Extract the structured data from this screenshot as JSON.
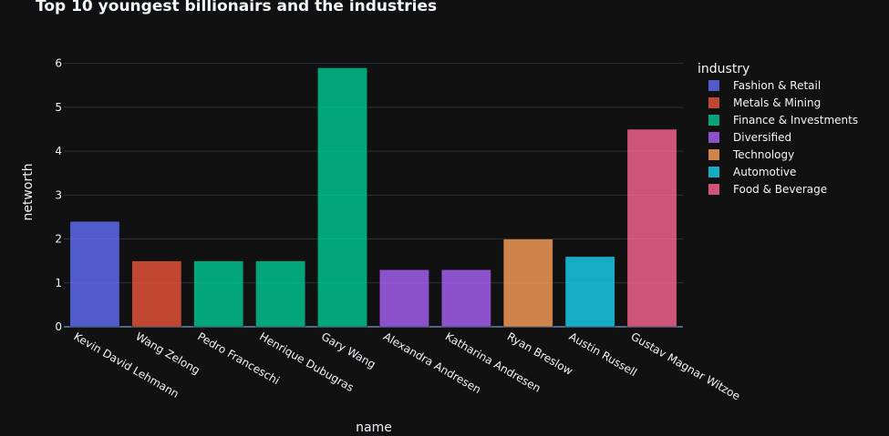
{
  "chart_data": {
    "type": "bar",
    "title": "Top 10 youngest billionairs and the industries",
    "xlabel": "name",
    "ylabel": "networth",
    "ylim": [
      0,
      6.2
    ],
    "yticks": [
      0,
      1,
      2,
      3,
      4,
      5,
      6
    ],
    "grid": true,
    "legend_title": "industry",
    "legend_position": "top-right",
    "legend": [
      {
        "name": "Fashion & Retail",
        "color": "#636efa"
      },
      {
        "name": "Metals & Mining",
        "color": "#ef553b"
      },
      {
        "name": "Finance & Investments",
        "color": "#00cc96"
      },
      {
        "name": "Diversified",
        "color": "#ab63fa"
      },
      {
        "name": "Technology",
        "color": "#ffa15a"
      },
      {
        "name": "Automotive",
        "color": "#19d3f3"
      },
      {
        "name": "Food & Beverage",
        "color": "#ff6692"
      }
    ],
    "categories": [
      "Kevin David Lehmann",
      "Wang Zelong",
      "Pedro Franceschi",
      "Henrique Dubugras",
      "Gary Wang",
      "Alexandra Andresen",
      "Katharina Andresen",
      "Ryan Breslow",
      "Austin Russell",
      "Gustav Magnar Witzoe"
    ],
    "values": [
      2.4,
      1.5,
      1.5,
      1.5,
      5.9,
      1.3,
      1.3,
      2.0,
      1.6,
      4.5
    ],
    "industries": [
      "Fashion & Retail",
      "Metals & Mining",
      "Finance & Investments",
      "Finance & Investments",
      "Finance & Investments",
      "Diversified",
      "Diversified",
      "Technology",
      "Automotive",
      "Food & Beverage"
    ]
  }
}
